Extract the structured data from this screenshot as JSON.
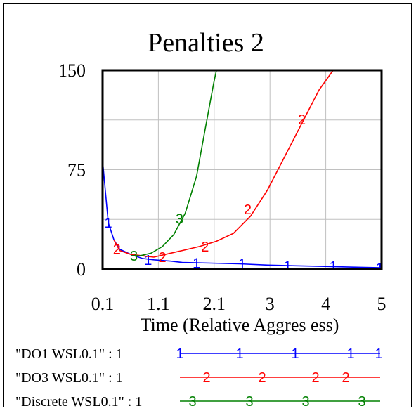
{
  "chart_data": {
    "type": "line",
    "title": "Penalties 2",
    "xlabel": "Time (Relative Aggres ess)",
    "ylabel": "",
    "xlim": [
      0.1,
      5
    ],
    "ylim": [
      0,
      150
    ],
    "x_ticks": [
      "0.1",
      "1.1",
      "2.1",
      "3",
      "4",
      "5"
    ],
    "y_ticks": [
      "150",
      "75",
      "0"
    ],
    "grid": true,
    "legend": "bottom",
    "series": [
      {
        "name": "\"DO1 WSL0.1\" : 1",
        "marker": "1",
        "color": "#0000ff",
        "points": [
          [
            0.1,
            82
          ],
          [
            0.15,
            58
          ],
          [
            0.2,
            35
          ],
          [
            0.3,
            22
          ],
          [
            0.4,
            15
          ],
          [
            0.5,
            13
          ],
          [
            0.6,
            11
          ],
          [
            0.8,
            8
          ],
          [
            1.0,
            7
          ],
          [
            1.3,
            6
          ],
          [
            1.5,
            5
          ],
          [
            2.0,
            4.5
          ],
          [
            2.5,
            4
          ],
          [
            3.0,
            3
          ],
          [
            3.5,
            2.5
          ],
          [
            4.0,
            2
          ],
          [
            4.5,
            1.5
          ],
          [
            5.0,
            1
          ]
        ],
        "marks": [
          [
            0.2,
            35
          ],
          [
            0.9,
            7
          ],
          [
            1.75,
            4.5
          ],
          [
            2.55,
            4
          ],
          [
            3.35,
            2.5
          ],
          [
            4.15,
            2
          ],
          [
            4.97,
            1
          ]
        ]
      },
      {
        "name": "\"DO3 WSL0.1\" : 1",
        "marker": "2",
        "color": "#ff0000",
        "points": [
          [
            0.3,
            22
          ],
          [
            0.4,
            14
          ],
          [
            0.6,
            11
          ],
          [
            0.8,
            10
          ],
          [
            1.0,
            9
          ],
          [
            1.2,
            11
          ],
          [
            1.5,
            14
          ],
          [
            1.8,
            17
          ],
          [
            2.1,
            21
          ],
          [
            2.4,
            27
          ],
          [
            2.7,
            40
          ],
          [
            3.0,
            60
          ],
          [
            3.3,
            85
          ],
          [
            3.6,
            110
          ],
          [
            3.9,
            135
          ],
          [
            4.15,
            150
          ]
        ],
        "marks": [
          [
            0.35,
            15
          ],
          [
            1.15,
            9
          ],
          [
            1.9,
            17
          ],
          [
            2.65,
            45
          ],
          [
            3.6,
            113
          ]
        ]
      },
      {
        "name": "\"Discrete WSL0.1\" : 1",
        "marker": "3",
        "color": "#008000",
        "points": [
          [
            0.6,
            10
          ],
          [
            0.75,
            10
          ],
          [
            0.95,
            12
          ],
          [
            1.15,
            17
          ],
          [
            1.35,
            26
          ],
          [
            1.55,
            42
          ],
          [
            1.75,
            70
          ],
          [
            1.9,
            105
          ],
          [
            2.05,
            140
          ],
          [
            2.1,
            150
          ]
        ],
        "marks": [
          [
            0.65,
            10
          ],
          [
            1.45,
            38
          ]
        ]
      }
    ]
  }
}
